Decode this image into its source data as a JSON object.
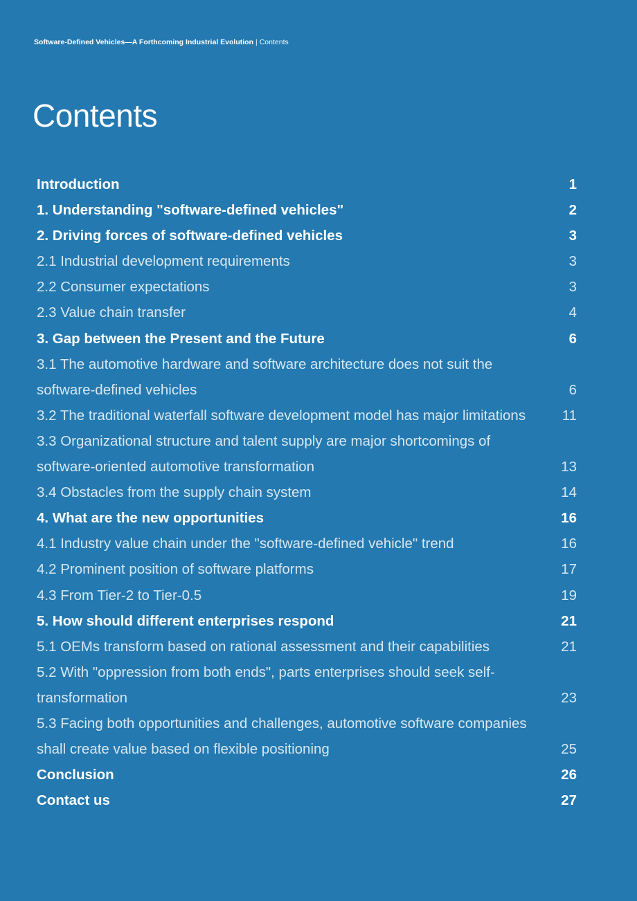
{
  "header": {
    "document_title": "Software-Defined Vehicles—A Forthcoming Industrial Evolution",
    "separator": "|",
    "section": "Contents"
  },
  "page_title": "Contents",
  "toc": [
    {
      "label": "Introduction",
      "page": "1",
      "level": "major"
    },
    {
      "label": "1. Understanding \"software-defined vehicles\"",
      "page": "2",
      "level": "major"
    },
    {
      "label": "2. Driving forces of software-defined vehicles",
      "page": "3",
      "level": "major"
    },
    {
      "label": "2.1 Industrial development requirements",
      "page": "3",
      "level": "minor"
    },
    {
      "label": "2.2 Consumer expectations",
      "page": "3",
      "level": "minor"
    },
    {
      "label": "2.3 Value chain transfer",
      "page": "4",
      "level": "minor"
    },
    {
      "label": "3. Gap between the Present and the Future",
      "page": "6",
      "level": "major"
    },
    {
      "label": "3.1 The automotive hardware and software architecture does not suit the software-defined vehicles",
      "page": "6",
      "level": "minor"
    },
    {
      "label": "3.2 The traditional waterfall software development model has major limitations",
      "page": "11",
      "level": "minor"
    },
    {
      "label": "3.3 Organizational structure and talent supply are major shortcomings of software-oriented automotive transformation",
      "page": "13",
      "level": "minor"
    },
    {
      "label": "3.4 Obstacles from the supply chain system",
      "page": "14",
      "level": "minor"
    },
    {
      "label": "4. What are the new opportunities",
      "page": "16",
      "level": "major"
    },
    {
      "label": "4.1 Industry value chain under the \"software-defined vehicle\" trend",
      "page": "16",
      "level": "minor"
    },
    {
      "label": "4.2 Prominent position of software platforms",
      "page": "17",
      "level": "minor"
    },
    {
      "label": "4.3 From Tier-2 to Tier-0.5",
      "page": "19",
      "level": "minor"
    },
    {
      "label": "5. How should different enterprises respond",
      "page": "21",
      "level": "major"
    },
    {
      "label": "5.1 OEMs transform based on rational assessment and their capabilities",
      "page": "21",
      "level": "minor"
    },
    {
      "label": "5.2 With \"oppression from both ends\", parts enterprises should seek self-transformation",
      "page": "23",
      "level": "minor"
    },
    {
      "label": "5.3 Facing both opportunities and challenges, automotive software companies shall create value based on flexible positioning",
      "page": "25",
      "level": "minor"
    },
    {
      "label": "Conclusion",
      "page": "26",
      "level": "major"
    },
    {
      "label": "Contact us",
      "page": "27",
      "level": "major"
    }
  ]
}
